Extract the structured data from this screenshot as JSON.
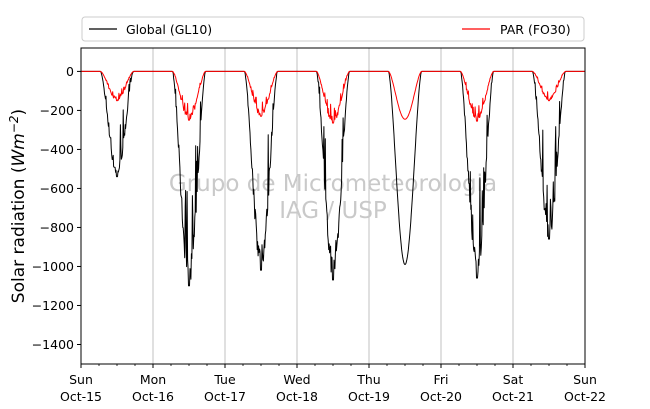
{
  "chart_data": {
    "type": "line",
    "title": "",
    "xlabel": "",
    "ylabel": "Solar radiation (Wm−2)",
    "ylabel_parts": {
      "main": "Solar radiation (",
      "unit": "Wm",
      "exp": "−2",
      "close": ")"
    },
    "ylim": [
      -1500,
      120
    ],
    "yticks": [
      0,
      -200,
      -400,
      -600,
      -800,
      -1000,
      -1200,
      -1400
    ],
    "xlim_days": [
      0,
      7
    ],
    "xticks": [
      {
        "day": 0,
        "weekday": "Sun",
        "date": "Oct-15"
      },
      {
        "day": 1,
        "weekday": "Mon",
        "date": "Oct-16"
      },
      {
        "day": 2,
        "weekday": "Tue",
        "date": "Oct-17"
      },
      {
        "day": 3,
        "weekday": "Wed",
        "date": "Oct-18"
      },
      {
        "day": 4,
        "weekday": "Thu",
        "date": "Oct-19"
      },
      {
        "day": 5,
        "weekday": "Fri",
        "date": "Oct-20"
      },
      {
        "day": 6,
        "weekday": "Sat",
        "date": "Oct-21"
      },
      {
        "day": 7,
        "weekday": "Sun",
        "date": "Oct-22"
      }
    ],
    "grid": "vertical",
    "legend": {
      "placement": "above-plot",
      "entries": [
        "Global (GL10)",
        "PAR (FO30)"
      ]
    },
    "watermark": [
      "Grupo de Micrometeorologia",
      "IAG / USP"
    ],
    "series": [
      {
        "name": "Global (GL10)",
        "color": "#000000",
        "daily_peaks": [
          -540,
          -1100,
          -1020,
          -1070,
          -990,
          -1060,
          -860
        ],
        "daily_shape": [
          "noisy",
          "noisy",
          "noisy",
          "noisy",
          "smooth",
          "noisy",
          "noisy"
        ]
      },
      {
        "name": "PAR (FO30)",
        "color": "#ff0000",
        "daily_peaks": [
          -150,
          -250,
          -230,
          -265,
          -245,
          -255,
          -150
        ],
        "daily_shape": [
          "noisy",
          "noisy",
          "noisy",
          "noisy",
          "smooth",
          "noisy",
          "noisy"
        ]
      }
    ]
  }
}
